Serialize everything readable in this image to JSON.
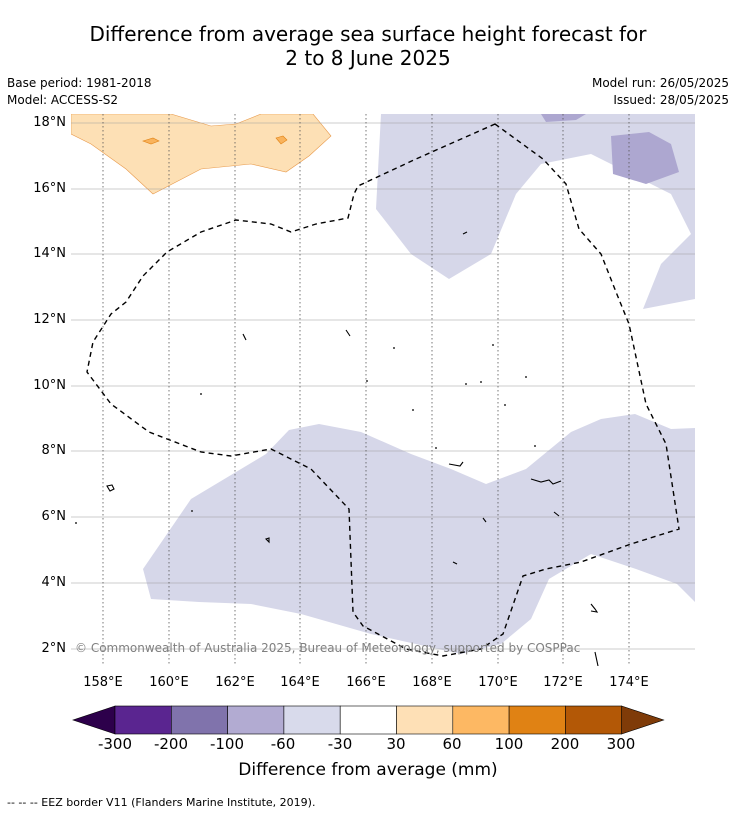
{
  "title": {
    "line1": "Difference from average sea surface height forecast for",
    "line2": "2 to 8 June 2025"
  },
  "meta": {
    "base_period": "Base period: 1981-2018",
    "model": "Model: ACCESS-S2",
    "model_run": "Model run: 26/05/2025",
    "issued": "Issued: 28/05/2025"
  },
  "map": {
    "latitudes": [
      "18°N",
      "16°N",
      "14°N",
      "12°N",
      "10°N",
      "8°N",
      "6°N",
      "4°N",
      "2°N"
    ],
    "longitudes": [
      "158°E",
      "160°E",
      "162°E",
      "164°E",
      "166°E",
      "168°E",
      "170°E",
      "172°E",
      "174°E"
    ],
    "copyright": "© Commonwealth of Australia 2025, Bureau of Meteorology, supported by COSPPac",
    "colors": {
      "anomaly_-60_-30": "#d6d7e9",
      "anomaly_-100_-60": "#ada7d0",
      "anomaly_30_60": "#fde0b5",
      "anomaly_60_100": "#f9b35c",
      "eez_border": "#000000"
    }
  },
  "colorbar": {
    "ticks": [
      "-300",
      "-200",
      "-100",
      "-60",
      "-30",
      "30",
      "60",
      "100",
      "200",
      "300"
    ],
    "colors": [
      "#2d004b",
      "#5a2590",
      "#8073ac",
      "#b2abd2",
      "#d8daeb",
      "#ffffff",
      "#fee0b6",
      "#fdb863",
      "#e08214",
      "#b35806",
      "#7f3b08"
    ],
    "label": "Difference from average (mm)"
  },
  "footnote": "--  --  -- EEZ border V11 (Flanders Marine Institute, 2019)."
}
